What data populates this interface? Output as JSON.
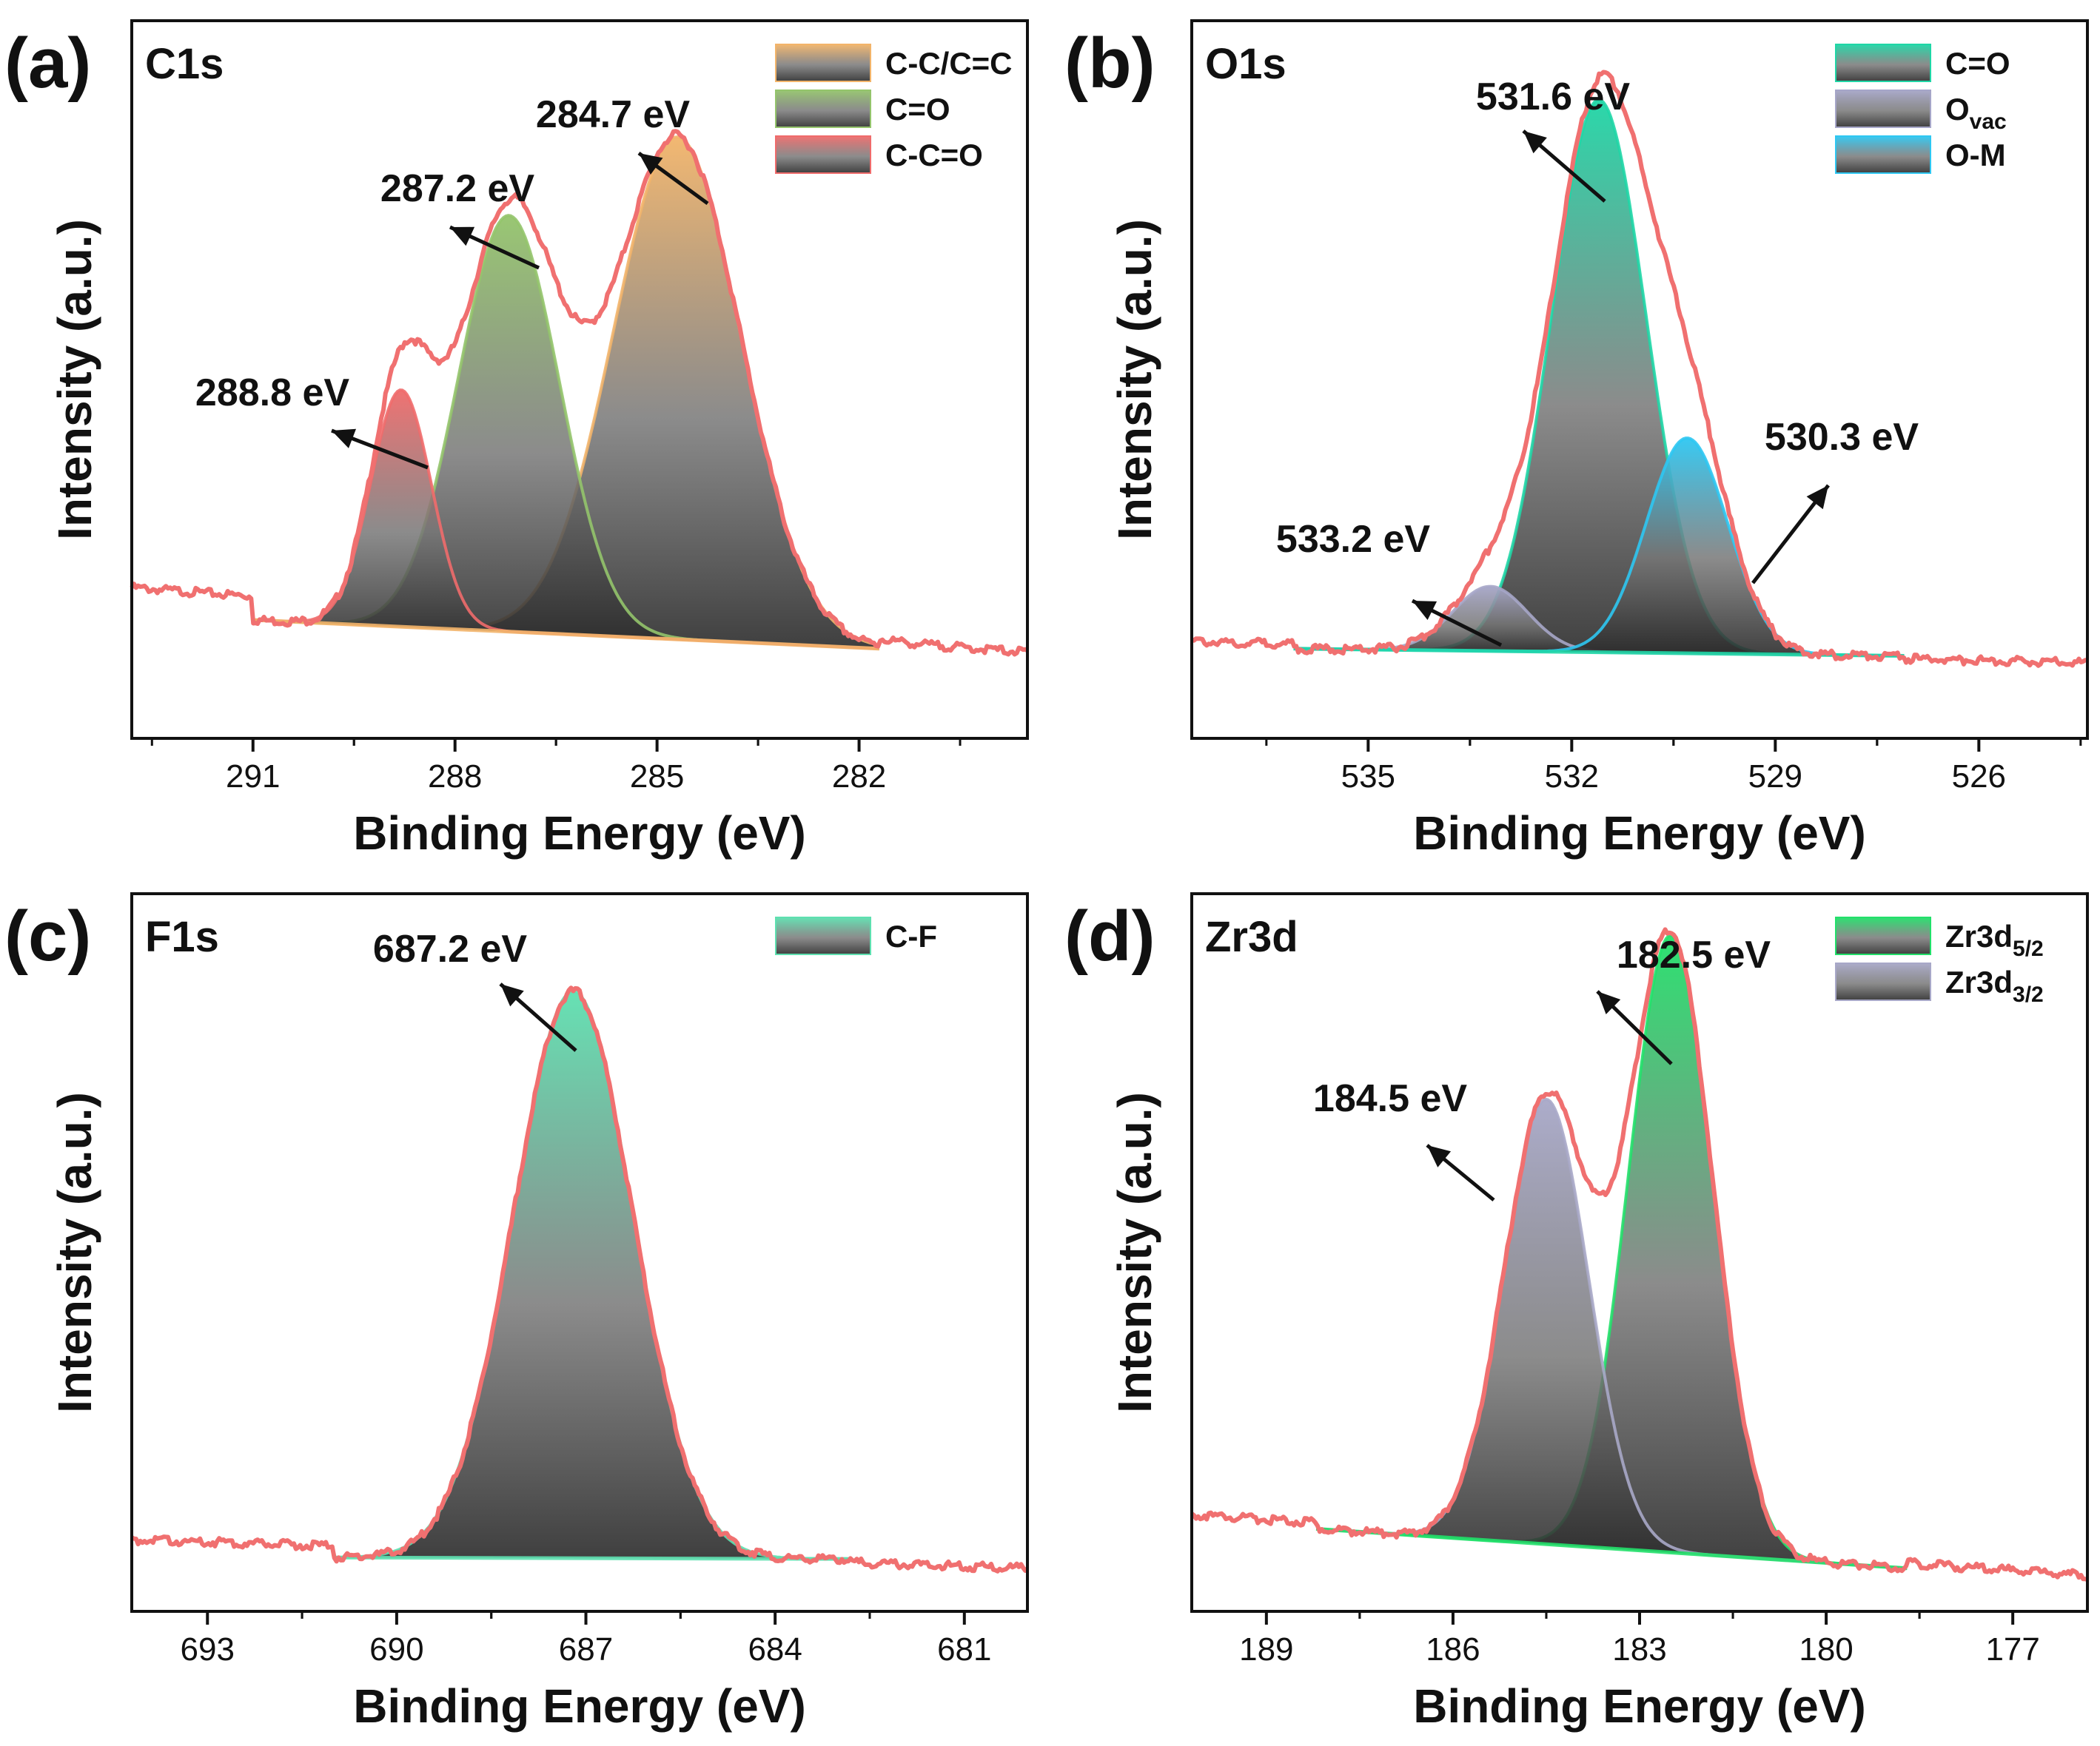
{
  "figure": {
    "xlabel_common": "Binding Energy (eV)",
    "ylabel_common": "Intensity (a.u.)"
  },
  "chart_data": [
    {
      "type": "line",
      "panel_label": "(a)",
      "title": "C1s",
      "xlabel": "Binding Energy (eV)",
      "ylabel": "Intensity (a.u.)",
      "xlim": [
        292.8,
        279.5
      ],
      "ylim": [
        0,
        1.0
      ],
      "xticks": [
        291,
        288,
        285,
        282
      ],
      "tick_labels": [
        "291",
        "288",
        "285",
        "282"
      ],
      "legend_position": "top-right",
      "background": {
        "x_left": 291.0,
        "y_left": 0.165,
        "x_right": 281.7,
        "y_right": 0.125
      },
      "raw_baseline": {
        "left": 0.21,
        "right": 0.12
      },
      "components": [
        {
          "name": "C-C/C=C",
          "center": 284.7,
          "height": 0.7,
          "width": 0.95,
          "color": "#f2b46a",
          "label": "284.7 eV"
        },
        {
          "name": "C=O",
          "center": 287.2,
          "height": 0.58,
          "width": 0.75,
          "color": "#94c46c",
          "label": "287.2 eV"
        },
        {
          "name": "C-C=O",
          "center": 288.8,
          "height": 0.33,
          "width": 0.45,
          "color": "#ef6b6b",
          "label": "288.8 eV"
        }
      ],
      "annotations": [
        {
          "text": "284.7 eV",
          "x": 284.7
        },
        {
          "text": "287.2 eV",
          "x": 287.2
        },
        {
          "text": "288.8 eV",
          "x": 288.8
        }
      ]
    },
    {
      "type": "line",
      "panel_label": "(b)",
      "title": "O1s",
      "xlabel": "Binding Energy (eV)",
      "ylabel": "Intensity (a.u.)",
      "xlim": [
        537.6,
        524.4
      ],
      "ylim": [
        0,
        1.0
      ],
      "xticks": [
        535,
        532,
        529,
        526
      ],
      "tick_labels": [
        "535",
        "532",
        "529",
        "526"
      ],
      "legend_position": "top-right",
      "background": {
        "x_left": 536.1,
        "y_left": 0.125,
        "x_right": 527.1,
        "y_right": 0.115
      },
      "raw_baseline": {
        "left": 0.135,
        "right": 0.105
      },
      "components": [
        {
          "name": "C=O",
          "center": 531.6,
          "height": 0.77,
          "width": 0.7,
          "color": "#1fd6a6",
          "label": "531.6 eV"
        },
        {
          "name": "Ovac",
          "name_base": "O",
          "name_sub": "vac",
          "center": 533.2,
          "height": 0.09,
          "width": 0.55,
          "color": "#a6a6c8",
          "label": "533.2 eV"
        },
        {
          "name": "O-M",
          "center": 530.3,
          "height": 0.3,
          "width": 0.6,
          "color": "#2ec7f2",
          "label": "530.3 eV"
        }
      ],
      "annotations": [
        {
          "text": "531.6 eV",
          "x": 531.6
        },
        {
          "text": "533.2 eV",
          "x": 533.2
        },
        {
          "text": "530.3 eV",
          "x": 530.3
        }
      ]
    },
    {
      "type": "line",
      "panel_label": "(c)",
      "title": "F1s",
      "xlabel": "Binding Energy (eV)",
      "ylabel": "Intensity (a.u.)",
      "xlim": [
        694.2,
        680.0
      ],
      "ylim": [
        0,
        1.0
      ],
      "xticks": [
        693,
        690,
        687,
        684,
        681
      ],
      "tick_labels": [
        "693",
        "690",
        "687",
        "684",
        "681"
      ],
      "legend_position": "top-right",
      "background": {
        "x_left": 691.0,
        "y_left": 0.075,
        "x_right": 682.8,
        "y_right": 0.073
      },
      "raw_baseline": {
        "left": 0.1,
        "right": 0.06
      },
      "components": [
        {
          "name": "C-F",
          "center": 687.2,
          "height": 0.79,
          "width": 0.95,
          "color": "#5ee0b0",
          "label": "687.2 eV"
        }
      ],
      "annotations": [
        {
          "text": "687.2 eV",
          "x": 687.2
        }
      ]
    },
    {
      "type": "line",
      "panel_label": "(d)",
      "title": "Zr3d",
      "xlabel": "Binding Energy (eV)",
      "ylabel": "Intensity (a.u.)",
      "xlim": [
        190.2,
        175.8
      ],
      "ylim": [
        0,
        1.0
      ],
      "xticks": [
        189,
        186,
        183,
        180,
        177
      ],
      "tick_labels": [
        "189",
        "186",
        "183",
        "180",
        "177"
      ],
      "legend_position": "top-right",
      "background": {
        "x_left": 188.2,
        "y_left": 0.115,
        "x_right": 178.7,
        "y_right": 0.06
      },
      "raw_baseline": {
        "left": 0.135,
        "right": 0.05
      },
      "components": [
        {
          "name": "Zr3d5/2",
          "name_base": "Zr3d",
          "name_sub": "5/2",
          "center": 182.5,
          "height": 0.86,
          "width": 0.68,
          "color": "#22e06a",
          "label": "182.5 eV"
        },
        {
          "name": "Zr3d3/2",
          "name_base": "Zr3d",
          "name_sub": "3/2",
          "center": 184.5,
          "height": 0.62,
          "width": 0.68,
          "color": "#a8a8c8",
          "label": "184.5 eV"
        }
      ],
      "annotations": [
        {
          "text": "182.5 eV",
          "x": 182.5
        },
        {
          "text": "184.5 eV",
          "x": 184.5
        }
      ]
    }
  ]
}
